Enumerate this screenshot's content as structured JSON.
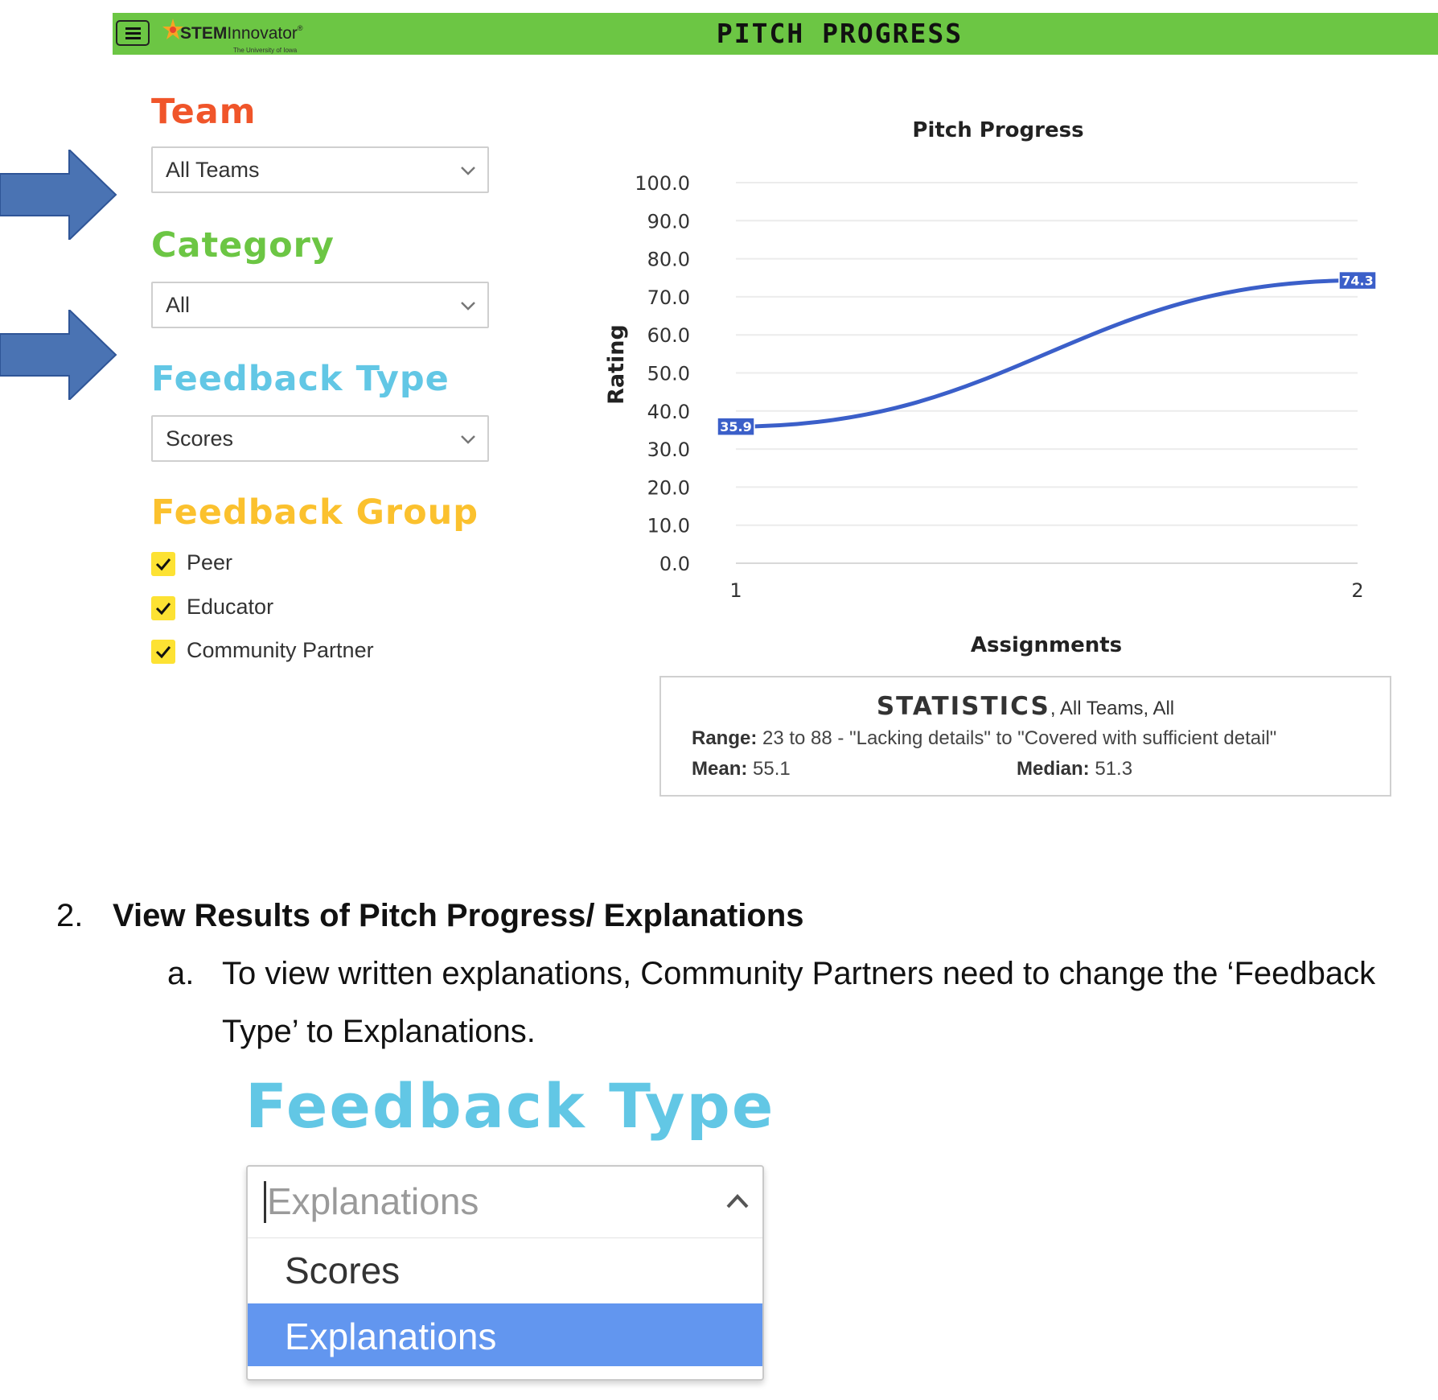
{
  "header": {
    "logo_main_bold": "STEM",
    "logo_main_rest": "Innovator",
    "logo_reg": "®",
    "logo_sub": "The University of Iowa",
    "title": "PITCH PROGRESS",
    "bar_color": "#6cc644"
  },
  "filters": {
    "team": {
      "title": "Team",
      "color": "#f0552a",
      "value": "All Teams"
    },
    "category": {
      "title": "Category",
      "color": "#6cc644",
      "value": "All"
    },
    "feedback_type": {
      "title": "Feedback Type",
      "color": "#62c7e5",
      "value": "Scores"
    },
    "feedback_group": {
      "title": "Feedback Group",
      "color": "#fbc12e",
      "items": [
        {
          "label": "Peer",
          "checked": true
        },
        {
          "label": "Educator",
          "checked": true
        },
        {
          "label": "Community Partner",
          "checked": true
        }
      ]
    }
  },
  "chart_data": {
    "type": "line",
    "title": "Pitch Progress",
    "xlabel": "Assignments",
    "ylabel": "Rating",
    "x": [
      1,
      2
    ],
    "series": [
      {
        "values": [
          35.9,
          74.3
        ],
        "color": "#3b5fc9"
      }
    ],
    "data_labels": [
      "35.9",
      "74.3"
    ],
    "ylim": [
      0,
      100
    ],
    "yticks": [
      "100.0",
      "90.0",
      "80.0",
      "70.0",
      "60.0",
      "50.0",
      "40.0",
      "30.0",
      "20.0",
      "10.0",
      "0.0"
    ],
    "xticks": [
      "1",
      "2"
    ],
    "grid": true,
    "legend": "none"
  },
  "statistics": {
    "title": "STATISTICS",
    "subtitle": ", All Teams, All",
    "range_label": "Range:",
    "range_value": " 23 to 88 - \"Lacking details\" to \"Covered with sufficient detail\"",
    "mean_label": "Mean:",
    "mean_value": " 55.1",
    "median_label": "Median:",
    "median_value": " 51.3"
  },
  "document": {
    "step_number": "2.",
    "step_heading": "View Results of Pitch Progress/ Explanations",
    "sub_letter": "a.",
    "sub_text_1": "To view written explanations, Community Partners need to change the ‘Feedback",
    "sub_text_2": "Type’ to Explanations."
  },
  "zoom_dropdown": {
    "title": "Feedback Type",
    "placeholder": "Explanations",
    "options": [
      "Scores",
      "Explanations"
    ],
    "highlighted": "Explanations",
    "highlight_color": "#6296ef"
  },
  "arrows": {
    "color": "#4a73b3"
  }
}
